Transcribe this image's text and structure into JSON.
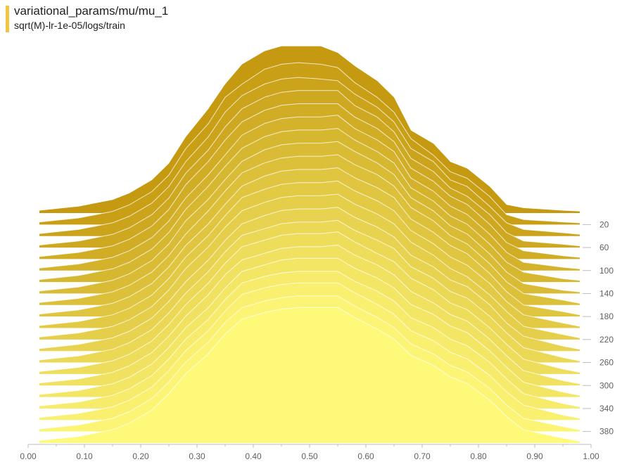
{
  "header": {
    "title": "variational_params/mu/mu_1",
    "subtitle": "sqrt(M)-lr-1e-05/logs/train",
    "color": "#f4c542"
  },
  "chart_data": {
    "type": "area",
    "subtype": "ridgeline-histogram",
    "title": "variational_params/mu/mu_1",
    "series_label": "sqrt(M)-lr-1e-05/logs/train",
    "xlim": [
      0.0,
      1.0
    ],
    "x_ticks": [
      0.0,
      0.1,
      0.2,
      0.3,
      0.4,
      0.5,
      0.6,
      0.7,
      0.8,
      0.9,
      1.0
    ],
    "x_tick_labels": [
      "0.00",
      "0.10",
      "0.20",
      "0.30",
      "0.40",
      "0.50",
      "0.60",
      "0.70",
      "0.80",
      "0.90",
      "1.00"
    ],
    "step_ticks": [
      20,
      60,
      100,
      140,
      180,
      220,
      260,
      300,
      340,
      380
    ],
    "step_range": [
      0,
      400
    ],
    "x": [
      0.02,
      0.09,
      0.15,
      0.18,
      0.22,
      0.25,
      0.28,
      0.32,
      0.35,
      0.38,
      0.42,
      0.45,
      0.48,
      0.52,
      0.55,
      0.58,
      0.62,
      0.65,
      0.68,
      0.72,
      0.75,
      0.78,
      0.82,
      0.85,
      0.88,
      0.95,
      0.98
    ],
    "series": [
      {
        "step": 0,
        "values": [
          0.15,
          0.4,
          0.8,
          1.2,
          2.0,
          3.0,
          4.6,
          6.3,
          7.8,
          9.0,
          9.8,
          10.1,
          10.1,
          10.1,
          9.7,
          8.9,
          8.0,
          7.0,
          5.0,
          4.2,
          3.1,
          2.7,
          1.6,
          0.5,
          0.3,
          0.15,
          0.1
        ]
      },
      {
        "step": 20,
        "values": [
          0.15,
          0.4,
          0.8,
          1.2,
          2.0,
          3.0,
          4.6,
          6.1,
          7.7,
          8.5,
          9.4,
          9.7,
          9.8,
          9.7,
          9.5,
          8.6,
          7.7,
          6.8,
          5.2,
          4.2,
          3.2,
          2.8,
          1.7,
          0.6,
          0.3,
          0.15,
          0.1
        ]
      },
      {
        "step": 40,
        "values": [
          0.15,
          0.4,
          0.8,
          1.2,
          2.0,
          3.0,
          4.5,
          6.0,
          7.5,
          8.5,
          9.2,
          9.5,
          9.6,
          9.5,
          9.4,
          8.6,
          7.8,
          6.9,
          5.3,
          4.5,
          3.4,
          3.0,
          1.8,
          0.8,
          0.4,
          0.2,
          0.1
        ]
      },
      {
        "step": 60,
        "values": [
          0.15,
          0.4,
          0.8,
          1.2,
          2.0,
          3.0,
          4.5,
          5.9,
          7.3,
          8.4,
          9.1,
          9.4,
          9.5,
          9.5,
          9.5,
          8.6,
          7.9,
          7.0,
          5.4,
          4.6,
          3.6,
          3.1,
          2.0,
          0.9,
          0.4,
          0.2,
          0.1
        ]
      },
      {
        "step": 80,
        "values": [
          0.15,
          0.4,
          0.8,
          1.2,
          2.0,
          3.0,
          4.5,
          5.9,
          7.2,
          8.3,
          9.0,
          9.3,
          9.4,
          9.4,
          9.4,
          8.6,
          7.9,
          7.1,
          5.5,
          4.7,
          3.8,
          3.3,
          2.1,
          1.0,
          0.5,
          0.2,
          0.1
        ]
      },
      {
        "step": 100,
        "values": [
          0.15,
          0.4,
          0.8,
          1.2,
          2.0,
          3.0,
          4.4,
          5.8,
          7.0,
          8.2,
          8.9,
          9.2,
          9.3,
          9.3,
          9.4,
          8.6,
          7.9,
          7.2,
          5.6,
          4.8,
          3.9,
          3.4,
          2.2,
          1.1,
          0.5,
          0.2,
          0.1
        ]
      },
      {
        "step": 120,
        "values": [
          0.15,
          0.4,
          0.8,
          1.2,
          2.0,
          3.0,
          4.4,
          5.8,
          7.0,
          8.1,
          8.8,
          9.1,
          9.2,
          9.2,
          9.3,
          8.6,
          7.9,
          7.2,
          5.7,
          4.9,
          4.0,
          3.5,
          2.3,
          1.2,
          0.6,
          0.2,
          0.1
        ]
      },
      {
        "step": 140,
        "values": [
          0.15,
          0.4,
          0.8,
          1.2,
          2.0,
          3.0,
          4.4,
          5.7,
          6.9,
          8.0,
          8.7,
          9.0,
          9.1,
          9.1,
          9.2,
          8.6,
          7.9,
          7.2,
          5.8,
          5.0,
          4.1,
          3.6,
          2.4,
          1.3,
          0.6,
          0.2,
          0.1
        ]
      },
      {
        "step": 160,
        "values": [
          0.15,
          0.4,
          0.8,
          1.2,
          2.0,
          3.0,
          4.3,
          5.7,
          6.9,
          8.0,
          8.6,
          8.9,
          9.0,
          9.0,
          9.1,
          8.5,
          7.9,
          7.2,
          5.9,
          5.1,
          4.2,
          3.7,
          2.5,
          1.4,
          0.7,
          0.3,
          0.1
        ]
      },
      {
        "step": 180,
        "values": [
          0.15,
          0.4,
          0.8,
          1.2,
          2.0,
          3.0,
          4.3,
          5.6,
          6.8,
          7.9,
          8.5,
          8.8,
          8.9,
          8.9,
          9.0,
          8.4,
          7.8,
          7.2,
          5.9,
          5.1,
          4.3,
          3.8,
          2.6,
          1.5,
          0.7,
          0.3,
          0.1
        ]
      },
      {
        "step": 200,
        "values": [
          0.15,
          0.4,
          0.8,
          1.2,
          2.0,
          3.0,
          4.3,
          5.6,
          6.8,
          7.9,
          8.4,
          8.7,
          8.8,
          8.8,
          8.9,
          8.3,
          7.7,
          7.1,
          5.9,
          5.1,
          4.3,
          3.8,
          2.7,
          1.6,
          0.8,
          0.3,
          0.1
        ]
      },
      {
        "step": 220,
        "values": [
          0.15,
          0.4,
          0.8,
          1.2,
          2.0,
          3.0,
          4.3,
          5.6,
          6.8,
          7.8,
          8.3,
          8.6,
          8.7,
          8.7,
          8.8,
          8.2,
          7.6,
          7.0,
          5.9,
          5.1,
          4.3,
          3.8,
          2.7,
          1.7,
          0.8,
          0.3,
          0.1
        ]
      },
      {
        "step": 240,
        "values": [
          0.15,
          0.4,
          0.8,
          1.2,
          2.0,
          3.0,
          4.2,
          5.5,
          6.7,
          7.7,
          8.2,
          8.5,
          8.6,
          8.6,
          8.7,
          8.1,
          7.5,
          6.9,
          5.8,
          5.1,
          4.3,
          3.9,
          2.8,
          1.7,
          0.9,
          0.3,
          0.1
        ]
      },
      {
        "step": 260,
        "values": [
          0.15,
          0.4,
          0.8,
          1.2,
          2.0,
          3.0,
          4.2,
          5.5,
          6.7,
          7.7,
          8.1,
          8.4,
          8.5,
          8.5,
          8.6,
          8.0,
          7.4,
          6.9,
          5.8,
          5.1,
          4.3,
          3.9,
          2.8,
          1.8,
          0.9,
          0.3,
          0.1
        ]
      },
      {
        "step": 280,
        "values": [
          0.15,
          0.4,
          0.8,
          1.2,
          2.0,
          3.0,
          4.2,
          5.5,
          6.7,
          7.7,
          8.1,
          8.4,
          8.5,
          8.5,
          8.6,
          8.0,
          7.3,
          6.8,
          5.8,
          5.1,
          4.3,
          3.9,
          2.8,
          1.8,
          0.9,
          0.3,
          0.1
        ]
      },
      {
        "step": 300,
        "values": [
          0.15,
          0.4,
          0.8,
          1.2,
          2.0,
          3.0,
          4.2,
          5.5,
          6.7,
          7.6,
          8.0,
          8.3,
          8.4,
          8.4,
          8.5,
          7.9,
          7.3,
          6.7,
          5.7,
          5.0,
          4.3,
          3.9,
          2.8,
          1.8,
          0.9,
          0.3,
          0.1
        ]
      },
      {
        "step": 320,
        "values": [
          0.15,
          0.4,
          0.8,
          1.2,
          2.0,
          3.0,
          4.2,
          5.4,
          6.6,
          7.6,
          8.0,
          8.3,
          8.4,
          8.4,
          8.4,
          7.8,
          7.2,
          6.6,
          5.6,
          5.0,
          4.3,
          3.9,
          2.8,
          1.8,
          0.9,
          0.3,
          0.1
        ]
      },
      {
        "step": 340,
        "values": [
          0.15,
          0.4,
          0.8,
          1.2,
          2.0,
          3.0,
          4.2,
          5.4,
          6.6,
          7.6,
          8.0,
          8.2,
          8.3,
          8.3,
          8.3,
          7.7,
          7.1,
          6.5,
          5.5,
          4.9,
          4.2,
          3.8,
          2.8,
          1.8,
          0.9,
          0.3,
          0.1
        ]
      },
      {
        "step": 360,
        "values": [
          0.15,
          0.4,
          0.8,
          1.2,
          2.0,
          3.0,
          4.2,
          5.4,
          6.6,
          7.6,
          8.0,
          8.2,
          8.3,
          8.3,
          8.3,
          7.7,
          7.0,
          6.4,
          5.4,
          4.8,
          4.1,
          3.7,
          2.7,
          1.7,
          0.9,
          0.3,
          0.1
        ]
      },
      {
        "step": 380,
        "values": [
          0.15,
          0.4,
          0.8,
          1.2,
          2.0,
          3.0,
          4.2,
          5.4,
          6.6,
          7.5,
          7.9,
          8.1,
          8.2,
          8.2,
          8.2,
          7.6,
          6.9,
          6.3,
          5.3,
          4.7,
          4.0,
          3.6,
          2.6,
          1.6,
          0.8,
          0.3,
          0.1
        ]
      },
      {
        "step": 400,
        "values": [
          0.15,
          0.4,
          0.8,
          1.2,
          2.0,
          3.0,
          4.2,
          5.4,
          6.6,
          7.5,
          7.9,
          8.1,
          8.2,
          8.2,
          8.2,
          7.6,
          6.9,
          6.3,
          5.3,
          4.7,
          4.0,
          3.6,
          2.6,
          1.6,
          0.8,
          0.3,
          0.1
        ]
      }
    ],
    "grid": false,
    "colors": {
      "oldest": "#c59a10",
      "newest": "#fff97a",
      "outline": "#ffffff"
    }
  }
}
